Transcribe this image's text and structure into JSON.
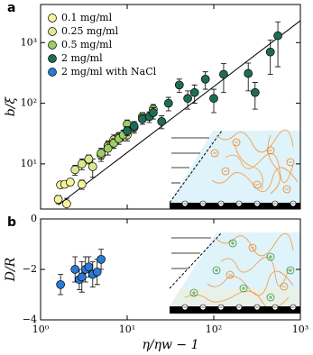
{
  "chart_data": [
    {
      "type": "scatter",
      "panel_label": "a",
      "ylabel": "b/ξ",
      "xscale": "log",
      "yscale": "log",
      "xlim": [
        1,
        1000
      ],
      "ylim": [
        1.8,
        4250
      ],
      "xticks": [
        1,
        10,
        100,
        1000
      ],
      "yticks": [
        {
          "value": 10,
          "label": "10¹"
        },
        {
          "value": 100,
          "label": "10²"
        },
        {
          "value": 1000,
          "label": "10³"
        }
      ],
      "legend": "upper left",
      "fit": {
        "x": [
          1.6,
          1000
        ],
        "y": [
          2.1,
          2300
        ],
        "color": "#000000"
      },
      "series": [
        {
          "name": "0.1 mg/ml",
          "color": "#f4f49a",
          "x": [
            1.6,
            1.7,
            1.9,
            2.0,
            2.2,
            3.0
          ],
          "values": [
            2.6,
            4.5,
            4.6,
            2.2,
            5.0,
            4.6
          ],
          "errors": [
            0.4,
            0.5,
            0.5,
            0.5,
            0.6,
            0.8
          ]
        },
        {
          "name": "0.25 mg/ml",
          "color": "#dde98e",
          "x": [
            2.5,
            3.0,
            3.6,
            4.0,
            5.0,
            6.0,
            7.0,
            8.0,
            10.0
          ],
          "values": [
            8,
            10,
            12,
            9,
            14,
            20,
            25,
            28,
            30
          ],
          "errors": [
            1.5,
            2,
            2,
            3,
            3,
            4,
            5,
            5,
            6
          ]
        },
        {
          "name": "0.5 mg/ml",
          "color": "#9ccd66",
          "x": [
            5,
            6,
            7,
            8,
            9,
            10,
            12,
            15,
            20
          ],
          "values": [
            15,
            18,
            22,
            26,
            30,
            45,
            40,
            60,
            80
          ],
          "errors": [
            3,
            4,
            4,
            5,
            6,
            8,
            8,
            10,
            15
          ]
        },
        {
          "name": "2 mg/ml",
          "color": "#1f6b58",
          "x": [
            10,
            12,
            15,
            18,
            20,
            25,
            30,
            40,
            50,
            60,
            80,
            100,
            130,
            250,
            300,
            450,
            550
          ],
          "values": [
            35,
            42,
            55,
            60,
            70,
            50,
            100,
            200,
            120,
            150,
            250,
            120,
            300,
            310,
            150,
            700,
            1300
          ],
          "errors": [
            6,
            8,
            10,
            12,
            15,
            12,
            25,
            50,
            40,
            50,
            80,
            50,
            150,
            150,
            70,
            400,
            900
          ]
        }
      ]
    },
    {
      "type": "scatter",
      "panel_label": "b",
      "ylabel": "D/R",
      "xlabel": "η/ηw − 1",
      "xscale": "log",
      "xlim": [
        1,
        1000
      ],
      "ylim": [
        -4,
        0
      ],
      "xticks": [
        {
          "value": 1,
          "label": "10⁰"
        },
        {
          "value": 10,
          "label": "10¹"
        },
        {
          "value": 100,
          "label": "10²"
        },
        {
          "value": 1000,
          "label": "10³"
        }
      ],
      "yticks": [
        {
          "value": 0,
          "label": "0"
        },
        {
          "value": -2,
          "label": "−2"
        },
        {
          "value": -4,
          "label": "−4"
        }
      ],
      "series": [
        {
          "name": "2 mg/ml with NaCl",
          "color": "#2a7ad6",
          "x": [
            1.7,
            2.5,
            2.8,
            3.0,
            3.3,
            3.6,
            4.0,
            4.5,
            5.0
          ],
          "values": [
            -2.6,
            -2.0,
            -2.4,
            -2.3,
            -2.0,
            -1.9,
            -2.2,
            -2.1,
            -1.6
          ],
          "errors": [
            0.4,
            0.5,
            0.4,
            0.6,
            0.5,
            0.4,
            0.5,
            0.5,
            0.4
          ]
        }
      ]
    }
  ]
}
